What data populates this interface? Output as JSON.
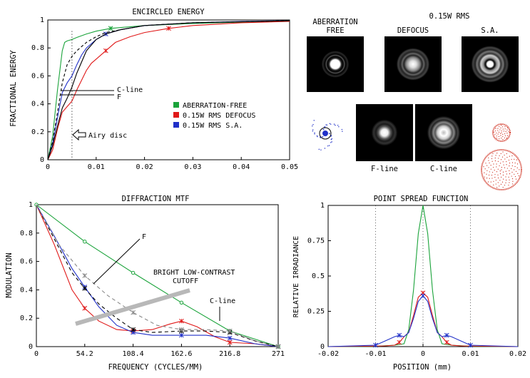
{
  "chart_data": [
    {
      "type": "line",
      "title": "ENCIRCLED ENERGY",
      "xlabel": "",
      "ylabel": "FRACTIONAL ENERGY",
      "xlim": [
        0,
        0.05
      ],
      "ylim": [
        0,
        1
      ],
      "x_ticks": [
        "0",
        "0.01",
        "0.02",
        "0.03",
        "0.04",
        "0.05"
      ],
      "y_ticks": [
        "0",
        "0.2",
        "0.4",
        "0.6",
        "0.8",
        "1"
      ],
      "legend": [
        "ABERRATION-FREE",
        "0.15W RMS DEFOCUS",
        "0.15W RMS S.A."
      ],
      "legend_colors": [
        "#1aa33a",
        "#e01818",
        "#2030c8"
      ],
      "series": [
        {
          "name": "ABERRATION-FREE",
          "color": "#1aa33a",
          "x": [
            0,
            0.001,
            0.002,
            0.003,
            0.0035,
            0.004,
            0.005,
            0.006,
            0.008,
            0.01,
            0.013,
            0.02,
            0.03,
            0.04,
            0.05
          ],
          "y": [
            0,
            0.17,
            0.5,
            0.78,
            0.84,
            0.85,
            0.86,
            0.875,
            0.9,
            0.92,
            0.94,
            0.96,
            0.975,
            0.985,
            0.99
          ]
        },
        {
          "name": "0.15W RMS DEFOCUS",
          "color": "#e01818",
          "x": [
            0,
            0.001,
            0.002,
            0.003,
            0.004,
            0.005,
            0.006,
            0.007,
            0.008,
            0.009,
            0.01,
            0.012,
            0.014,
            0.017,
            0.02,
            0.025,
            0.03,
            0.04,
            0.05
          ],
          "y": [
            0,
            0.07,
            0.22,
            0.34,
            0.38,
            0.42,
            0.5,
            0.57,
            0.64,
            0.69,
            0.72,
            0.78,
            0.84,
            0.88,
            0.91,
            0.94,
            0.96,
            0.98,
            0.99
          ]
        },
        {
          "name": "0.15W RMS S.A.",
          "color": "#2030c8",
          "x": [
            0,
            0.001,
            0.002,
            0.003,
            0.004,
            0.005,
            0.006,
            0.007,
            0.008,
            0.01,
            0.012,
            0.015,
            0.02,
            0.03,
            0.04,
            0.05
          ],
          "y": [
            0,
            0.12,
            0.3,
            0.48,
            0.55,
            0.6,
            0.68,
            0.75,
            0.8,
            0.86,
            0.9,
            0.93,
            0.96,
            0.98,
            0.99,
            0.995
          ]
        },
        {
          "name": "C-line",
          "color": "#000000",
          "dash": "4,3",
          "x": [
            0,
            0.001,
            0.002,
            0.003,
            0.004,
            0.005,
            0.006,
            0.008,
            0.01,
            0.012,
            0.015,
            0.02,
            0.03,
            0.05
          ],
          "y": [
            0,
            0.13,
            0.34,
            0.55,
            0.68,
            0.74,
            0.78,
            0.84,
            0.88,
            0.91,
            0.93,
            0.96,
            0.98,
            0.995
          ]
        },
        {
          "name": "F",
          "color": "#000000",
          "x": [
            0,
            0.001,
            0.002,
            0.003,
            0.004,
            0.005,
            0.006,
            0.008,
            0.01,
            0.012,
            0.015,
            0.02,
            0.03,
            0.05
          ],
          "y": [
            0,
            0.1,
            0.24,
            0.37,
            0.44,
            0.52,
            0.62,
            0.78,
            0.86,
            0.9,
            0.93,
            0.96,
            0.98,
            0.995
          ]
        }
      ],
      "airy_disc_x": 0.005,
      "annotations": [
        "C-line",
        "F",
        "Airy disc"
      ]
    },
    {
      "type": "line",
      "title": "DIFFRACTION MTF",
      "xlabel": "FREQUENCY (CYCLES/MM)",
      "ylabel": "MODULATION",
      "xlim": [
        0,
        271
      ],
      "ylim": [
        0,
        1
      ],
      "x_ticks": [
        "0",
        "54.2",
        "108.4",
        "162.6",
        "216.8",
        "271"
      ],
      "y_ticks": [
        "0",
        "0.2",
        "0.4",
        "0.6",
        "0.8",
        "1"
      ],
      "series": [
        {
          "name": "ABERRATION-FREE",
          "color": "#1aa33a",
          "x": [
            0,
            54.2,
            108.4,
            162.6,
            216.8,
            271
          ],
          "y": [
            1,
            0.74,
            0.52,
            0.31,
            0.11,
            0
          ]
        },
        {
          "name": "0.15W RMS DEFOCUS",
          "color": "#e01818",
          "x": [
            0,
            20,
            40,
            54.2,
            70,
            90,
            108.4,
            130,
            150,
            162.6,
            180,
            200,
            216.8,
            245,
            271
          ],
          "y": [
            1,
            0.72,
            0.4,
            0.27,
            0.18,
            0.12,
            0.11,
            0.12,
            0.16,
            0.18,
            0.14,
            0.07,
            0.03,
            0.02,
            0
          ]
        },
        {
          "name": "0.15W RMS S.A.",
          "color": "#2030c8",
          "x": [
            0,
            20,
            40,
            54.2,
            70,
            90,
            108.4,
            130,
            162.6,
            190,
            216.8,
            245,
            271
          ],
          "y": [
            1,
            0.78,
            0.55,
            0.42,
            0.28,
            0.15,
            0.1,
            0.08,
            0.08,
            0.08,
            0.06,
            0.02,
            0
          ]
        },
        {
          "name": "C-line",
          "color": "#000000",
          "dash": "5,4",
          "x": [
            0,
            20,
            40,
            54.2,
            70,
            90,
            108.4,
            130,
            162.6,
            190,
            216.8,
            245,
            271
          ],
          "y": [
            1,
            0.76,
            0.52,
            0.41,
            0.3,
            0.2,
            0.12,
            0.1,
            0.11,
            0.11,
            0.1,
            0.04,
            0
          ]
        },
        {
          "name": "F",
          "color": "#888888",
          "dash": "5,4",
          "x": [
            0,
            25,
            54.2,
            80,
            108.4,
            135,
            162.6,
            190,
            216.8,
            245,
            271
          ],
          "y": [
            1,
            0.72,
            0.5,
            0.36,
            0.24,
            0.15,
            0.12,
            0.12,
            0.11,
            0.04,
            0
          ]
        }
      ],
      "annotations": [
        "F",
        "BRIGHT LOW-CONTRAST",
        "CUTOFF",
        "C-line"
      ]
    },
    {
      "type": "line",
      "title": "POINT SPREAD FUNCTION",
      "xlabel": "POSITION (mm)",
      "ylabel": "RELATIVE IRRADIANCE",
      "xlim": [
        -0.02,
        0.02
      ],
      "ylim": [
        0,
        1
      ],
      "x_ticks": [
        "-0.02",
        "-0.01",
        "0",
        "0.01",
        "0.02"
      ],
      "y_ticks": [
        "0",
        "0.25",
        "0.5",
        "0.75",
        "1"
      ],
      "series": [
        {
          "name": "ABERRATION-FREE",
          "color": "#1aa33a",
          "x": [
            -0.02,
            -0.01,
            -0.006,
            -0.004,
            -0.003,
            -0.002,
            -0.001,
            0,
            0.001,
            0.002,
            0.003,
            0.004,
            0.006,
            0.01,
            0.02
          ],
          "y": [
            0,
            0.002,
            0.01,
            0.02,
            0.12,
            0.4,
            0.8,
            1,
            0.8,
            0.4,
            0.12,
            0.02,
            0.01,
            0.002,
            0
          ]
        },
        {
          "name": "0.15W RMS DEFOCUS",
          "color": "#e01818",
          "x": [
            -0.02,
            -0.008,
            -0.006,
            -0.005,
            -0.004,
            -0.003,
            -0.002,
            -0.001,
            0,
            0.001,
            0.002,
            0.003,
            0.004,
            0.005,
            0.006,
            0.008,
            0.02
          ],
          "y": [
            0,
            0.005,
            0.01,
            0.03,
            0.07,
            0.1,
            0.22,
            0.35,
            0.38,
            0.35,
            0.22,
            0.1,
            0.07,
            0.03,
            0.01,
            0.005,
            0
          ]
        },
        {
          "name": "0.15W RMS S.A.",
          "color": "#2030c8",
          "x": [
            -0.02,
            -0.01,
            -0.008,
            -0.006,
            -0.005,
            -0.004,
            -0.003,
            -0.002,
            -0.001,
            0,
            0.001,
            0.002,
            0.003,
            0.004,
            0.005,
            0.006,
            0.008,
            0.01,
            0.02
          ],
          "y": [
            0,
            0.01,
            0.04,
            0.07,
            0.08,
            0.07,
            0.1,
            0.2,
            0.32,
            0.36,
            0.32,
            0.2,
            0.1,
            0.07,
            0.08,
            0.07,
            0.04,
            0.01,
            0
          ]
        }
      ]
    }
  ],
  "images": {
    "header": "0.15W RMS",
    "labels": [
      "ABERRATION",
      "FREE",
      "DEFOCUS",
      "S.A.",
      "F-line",
      "C-line"
    ]
  }
}
